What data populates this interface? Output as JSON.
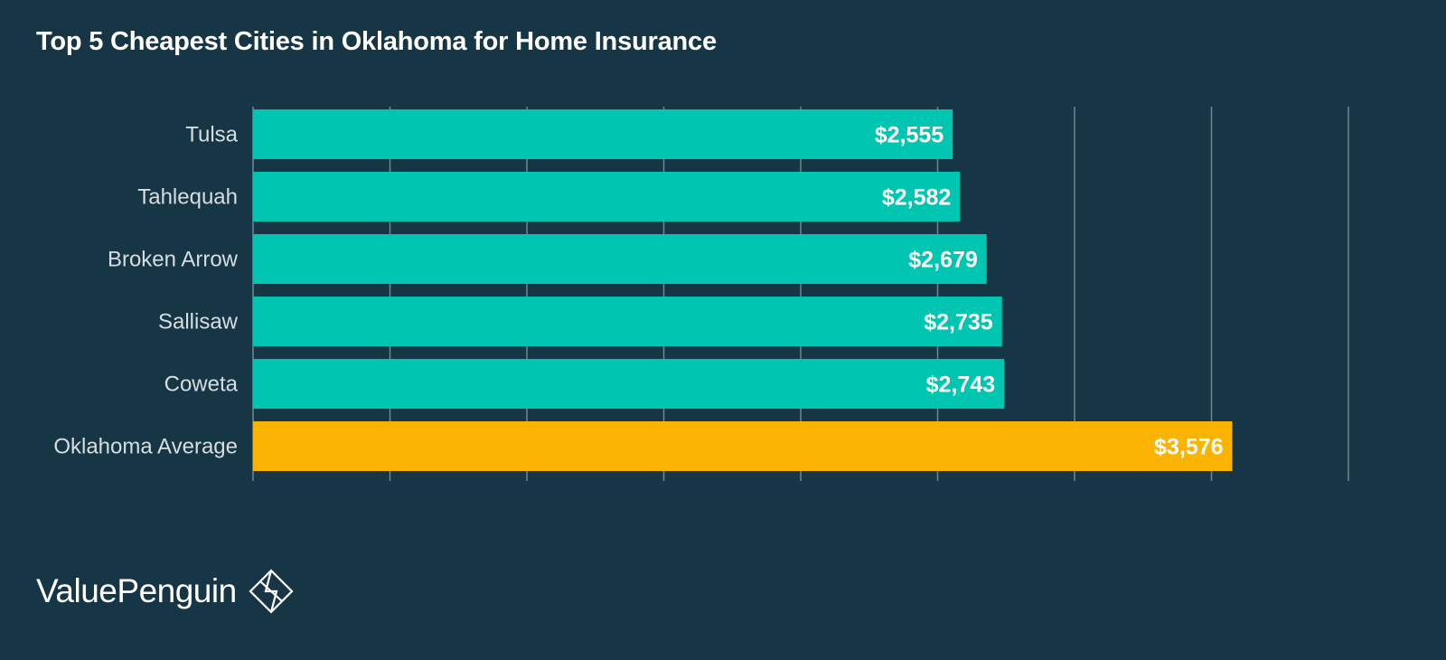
{
  "colors": {
    "background": "#173645",
    "city_bar": "#00c5b0",
    "average_bar": "#f9b300",
    "gridline": "#6f8591"
  },
  "brand": {
    "name": "ValuePenguin",
    "logo_icon": "diamond-logo-icon"
  },
  "chart_data": {
    "type": "bar",
    "orientation": "horizontal",
    "title": "Top 5 Cheapest Cities in Oklahoma for Home Insurance",
    "xlabel": "",
    "ylabel": "",
    "categories": [
      "Tulsa",
      "Tahlequah",
      "Broken Arrow",
      "Sallisaw",
      "Coweta",
      "Oklahoma Average"
    ],
    "values": [
      2555,
      2582,
      2679,
      2735,
      2743,
      3576
    ],
    "value_labels": [
      "$2,555",
      "$2,582",
      "$2,679",
      "$2,735",
      "$2,743",
      "$3,576"
    ],
    "highlight": [
      "city",
      "city",
      "city",
      "city",
      "city",
      "average"
    ],
    "xlim": [
      0,
      4000
    ],
    "x_gridlines": [
      0,
      500,
      1000,
      1500,
      2000,
      2500,
      3000,
      3500,
      4000
    ],
    "grid": true,
    "tick_labels_shown": false
  }
}
